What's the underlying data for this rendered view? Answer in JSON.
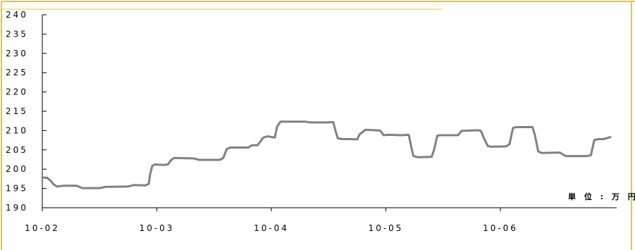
{
  "colors": {
    "frame_accent": "#FFC000",
    "line": "#808080",
    "axis": "#000000"
  },
  "chart_data": {
    "type": "line",
    "title": "",
    "xlabel": "",
    "ylabel": "",
    "unit_label": "単 位 : 万 円",
    "ylim": [
      190,
      240
    ],
    "y_ticks": [
      190,
      195,
      200,
      205,
      210,
      215,
      220,
      225,
      230,
      235,
      240
    ],
    "x_ticks": [
      "10-02",
      "10-03",
      "10-04",
      "10-05",
      "10-06"
    ],
    "xlim": [
      "10-02",
      "10-06 (end)"
    ],
    "grid": false,
    "series": [
      {
        "values": [
          [
            0.0,
            197.8
          ],
          [
            0.04,
            197.8
          ],
          [
            0.07,
            197.1
          ],
          [
            0.1,
            196.0
          ],
          [
            0.13,
            195.5
          ],
          [
            0.18,
            195.7
          ],
          [
            0.3,
            195.7
          ],
          [
            0.35,
            195.1
          ],
          [
            0.5,
            195.1
          ],
          [
            0.55,
            195.4
          ],
          [
            0.75,
            195.5
          ],
          [
            0.8,
            195.9
          ],
          [
            0.9,
            195.8
          ],
          [
            0.93,
            196.2
          ],
          [
            0.94,
            198.5
          ],
          [
            0.96,
            200.8
          ],
          [
            0.98,
            201.2
          ],
          [
            1.07,
            201.1
          ],
          [
            1.1,
            201.3
          ],
          [
            1.12,
            202.2
          ],
          [
            1.15,
            202.9
          ],
          [
            1.32,
            202.8
          ],
          [
            1.37,
            202.4
          ],
          [
            1.55,
            202.4
          ],
          [
            1.58,
            202.9
          ],
          [
            1.61,
            205.2
          ],
          [
            1.64,
            205.6
          ],
          [
            1.8,
            205.6
          ],
          [
            1.83,
            206.2
          ],
          [
            1.88,
            206.2
          ],
          [
            1.93,
            208.2
          ],
          [
            1.97,
            208.5
          ],
          [
            2.03,
            208.2
          ],
          [
            2.05,
            211.0
          ],
          [
            2.08,
            212.3
          ],
          [
            2.3,
            212.3
          ],
          [
            2.34,
            212.1
          ],
          [
            2.49,
            212.1
          ],
          [
            2.54,
            212.2
          ],
          [
            2.56,
            210.0
          ],
          [
            2.58,
            208.0
          ],
          [
            2.62,
            207.8
          ],
          [
            2.7,
            207.8
          ],
          [
            2.75,
            207.7
          ],
          [
            2.77,
            209.0
          ],
          [
            2.82,
            210.2
          ],
          [
            2.95,
            210.0
          ],
          [
            2.98,
            208.8
          ],
          [
            3.02,
            208.9
          ],
          [
            3.14,
            208.8
          ],
          [
            3.2,
            208.9
          ],
          [
            3.22,
            206.0
          ],
          [
            3.24,
            203.4
          ],
          [
            3.28,
            203.1
          ],
          [
            3.4,
            203.2
          ],
          [
            3.42,
            205.0
          ],
          [
            3.45,
            208.7
          ],
          [
            3.48,
            208.8
          ],
          [
            3.63,
            208.8
          ],
          [
            3.66,
            209.9
          ],
          [
            3.81,
            210.1
          ],
          [
            3.83,
            209.9
          ],
          [
            3.86,
            207.8
          ],
          [
            3.89,
            206.0
          ],
          [
            3.92,
            205.8
          ],
          [
            4.05,
            205.9
          ],
          [
            4.08,
            206.5
          ],
          [
            4.11,
            210.7
          ],
          [
            4.14,
            210.9
          ],
          [
            4.28,
            210.9
          ],
          [
            4.3,
            209.0
          ],
          [
            4.33,
            204.6
          ],
          [
            4.36,
            204.2
          ],
          [
            4.52,
            204.3
          ],
          [
            4.57,
            203.4
          ],
          [
            4.75,
            203.4
          ],
          [
            4.79,
            203.6
          ],
          [
            4.82,
            207.6
          ],
          [
            4.86,
            207.8
          ],
          [
            4.9,
            207.8
          ],
          [
            4.96,
            208.3
          ]
        ]
      }
    ]
  }
}
